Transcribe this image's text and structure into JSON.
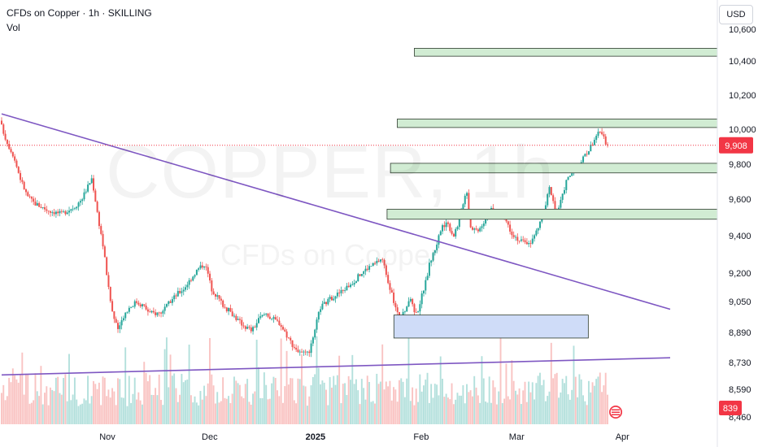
{
  "header": {
    "title": "CFDs on Copper · 1h · SKILLING",
    "indicator": "Vol"
  },
  "currency": "USD",
  "watermark": {
    "symbol": "COPPER, 1h",
    "description": "CFDs on Copper"
  },
  "colors": {
    "up": "#26a69a",
    "down": "#ef5350",
    "trendline": "#7e57c2",
    "zone_fill": "#d1ecd3",
    "zone_border": "#2e3b2e",
    "demand_fill": "#cfdcf8",
    "price_tag": "#f23645",
    "volume_tag": "#f23645"
  },
  "chart_data": {
    "type": "candlestick",
    "y_ticks": [
      10600,
      10400,
      10200,
      10000,
      9800,
      9600,
      9400,
      9200,
      9050,
      8890,
      8730,
      8590,
      8460
    ],
    "y_tick_labels": [
      "10,600",
      "10,400",
      "10,200",
      "10,000",
      "9,800",
      "9,600",
      "9,400",
      "9,200",
      "9,050",
      "8,890",
      "8,730",
      "8,590",
      "8,460"
    ],
    "x_ticks": [
      "Nov",
      "Dec",
      "2025",
      "Feb",
      "Mar",
      "Apr"
    ],
    "x_tick_days": [
      31,
      61,
      92,
      123,
      151,
      182
    ],
    "x_range_days": [
      0,
      196
    ],
    "last_price": 9908,
    "last_price_label": "9,908",
    "last_volume_label": "839",
    "price_path": [
      [
        0,
        10050
      ],
      [
        2,
        9930
      ],
      [
        4,
        9850
      ],
      [
        6,
        9720
      ],
      [
        8,
        9620
      ],
      [
        10,
        9580
      ],
      [
        12,
        9560
      ],
      [
        14,
        9540
      ],
      [
        16,
        9530
      ],
      [
        18,
        9520
      ],
      [
        20,
        9540
      ],
      [
        22,
        9560
      ],
      [
        24,
        9600
      ],
      [
        26,
        9680
      ],
      [
        27,
        9720
      ],
      [
        28,
        9600
      ],
      [
        29,
        9480
      ],
      [
        30,
        9380
      ],
      [
        31,
        9250
      ],
      [
        32,
        9100
      ],
      [
        33,
        9000
      ],
      [
        34,
        8930
      ],
      [
        35,
        8900
      ],
      [
        36,
        8970
      ],
      [
        38,
        9020
      ],
      [
        40,
        9050
      ],
      [
        42,
        9030
      ],
      [
        44,
        8990
      ],
      [
        46,
        8990
      ],
      [
        48,
        9000
      ],
      [
        50,
        9050
      ],
      [
        52,
        9090
      ],
      [
        54,
        9120
      ],
      [
        56,
        9170
      ],
      [
        58,
        9220
      ],
      [
        60,
        9250
      ],
      [
        61,
        9200
      ],
      [
        62,
        9120
      ],
      [
        64,
        9070
      ],
      [
        66,
        9020
      ],
      [
        68,
        8990
      ],
      [
        70,
        8950
      ],
      [
        72,
        8920
      ],
      [
        74,
        8900
      ],
      [
        76,
        8960
      ],
      [
        78,
        8990
      ],
      [
        80,
        8960
      ],
      [
        82,
        8940
      ],
      [
        84,
        8880
      ],
      [
        86,
        8820
      ],
      [
        88,
        8780
      ],
      [
        90,
        8770
      ],
      [
        91,
        8800
      ],
      [
        92,
        8860
      ],
      [
        93,
        8950
      ],
      [
        94,
        9020
      ],
      [
        96,
        9050
      ],
      [
        98,
        9080
      ],
      [
        100,
        9100
      ],
      [
        102,
        9130
      ],
      [
        104,
        9160
      ],
      [
        106,
        9200
      ],
      [
        108,
        9230
      ],
      [
        110,
        9250
      ],
      [
        112,
        9280
      ],
      [
        113,
        9220
      ],
      [
        114,
        9150
      ],
      [
        115,
        9080
      ],
      [
        116,
        9020
      ],
      [
        117,
        8960
      ],
      [
        118,
        8970
      ],
      [
        119,
        9020
      ],
      [
        120,
        9060
      ],
      [
        121,
        9040
      ],
      [
        122,
        8980
      ],
      [
        123,
        9030
      ],
      [
        124,
        9100
      ],
      [
        125,
        9160
      ],
      [
        126,
        9250
      ],
      [
        127,
        9300
      ],
      [
        128,
        9350
      ],
      [
        129,
        9420
      ],
      [
        130,
        9450
      ],
      [
        131,
        9480
      ],
      [
        132,
        9440
      ],
      [
        133,
        9400
      ],
      [
        134,
        9450
      ],
      [
        135,
        9500
      ],
      [
        136,
        9600
      ],
      [
        137,
        9650
      ],
      [
        138,
        9450
      ],
      [
        140,
        9430
      ],
      [
        142,
        9480
      ],
      [
        144,
        9540
      ],
      [
        146,
        9520
      ],
      [
        148,
        9500
      ],
      [
        150,
        9420
      ],
      [
        152,
        9380
      ],
      [
        154,
        9360
      ],
      [
        156,
        9370
      ],
      [
        158,
        9450
      ],
      [
        160,
        9550
      ],
      [
        161,
        9670
      ],
      [
        162,
        9620
      ],
      [
        163,
        9520
      ],
      [
        164,
        9560
      ],
      [
        165,
        9620
      ],
      [
        166,
        9700
      ],
      [
        168,
        9760
      ],
      [
        170,
        9800
      ],
      [
        172,
        9860
      ],
      [
        174,
        9930
      ],
      [
        175,
        9970
      ],
      [
        176,
        9980
      ],
      [
        177,
        9950
      ],
      [
        178,
        9908
      ]
    ],
    "trendlines": [
      {
        "from": [
          0,
          10090
        ],
        "to": [
          196,
          9010
        ]
      },
      {
        "from": [
          0,
          8665
        ],
        "to": [
          196,
          8755
        ]
      }
    ],
    "zones": [
      {
        "kind": "resistance",
        "day_start": 121,
        "day_end": 210,
        "price_top": 10480,
        "price_bottom": 10430
      },
      {
        "kind": "resistance",
        "day_start": 116,
        "day_end": 210,
        "price_top": 10060,
        "price_bottom": 10010
      },
      {
        "kind": "resistance",
        "day_start": 114,
        "day_end": 210,
        "price_top": 9805,
        "price_bottom": 9750
      },
      {
        "kind": "resistance",
        "day_start": 113,
        "day_end": 210,
        "price_top": 9545,
        "price_bottom": 9490
      },
      {
        "kind": "demand",
        "day_start": 115,
        "day_end": 172,
        "price_top": 8980,
        "price_bottom": 8860
      }
    ]
  }
}
